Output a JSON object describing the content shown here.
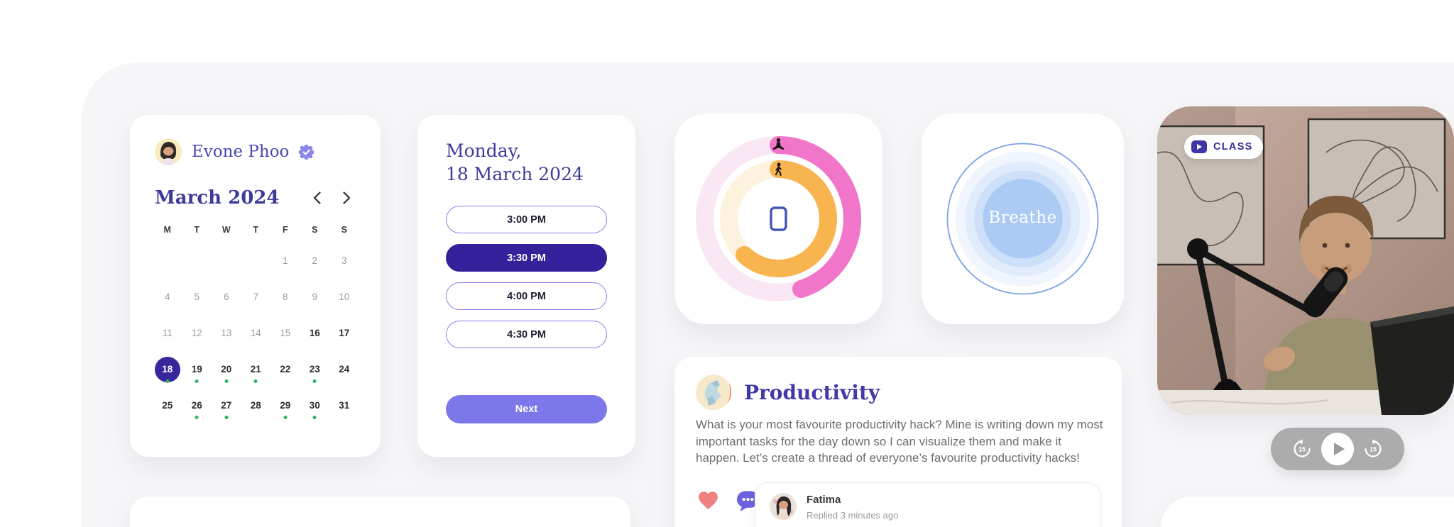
{
  "profile": {
    "name": "Evone Phoo",
    "verified": true
  },
  "calendar": {
    "month_title": "March 2024",
    "weekdays": [
      "M",
      "T",
      "W",
      "T",
      "F",
      "S",
      "S"
    ],
    "weeks": [
      [
        null,
        null,
        null,
        null,
        1,
        2,
        3
      ],
      [
        4,
        5,
        6,
        7,
        8,
        9,
        10
      ],
      [
        11,
        12,
        13,
        14,
        15,
        16,
        17
      ],
      [
        18,
        19,
        20,
        21,
        22,
        23,
        24
      ],
      [
        25,
        26,
        27,
        28,
        29,
        30,
        31
      ]
    ],
    "past_until": 15,
    "selected_day": 18,
    "dotted_days": [
      18,
      19,
      20,
      21,
      23,
      26,
      27,
      29,
      30
    ]
  },
  "schedule": {
    "title_line1": "Monday,",
    "title_line2": "18 March 2024",
    "slots": [
      "3:00 PM",
      "3:30 PM",
      "4:00 PM",
      "4:30 PM"
    ],
    "selected_slot": "3:30 PM",
    "next_label": "Next"
  },
  "activity": {
    "rings": [
      {
        "name": "meditation-ring",
        "progress": 0.45,
        "color": "#F175C9",
        "track": "#FAE7F4"
      },
      {
        "name": "steps-ring",
        "progress": 0.62,
        "color": "#F8B44F",
        "track": "#FCF2DE"
      }
    ]
  },
  "breathe": {
    "label": "Breathe"
  },
  "video": {
    "badge_label": "CLASS",
    "controls": [
      "rewind-15",
      "play",
      "forward-15"
    ],
    "skip_seconds": "15"
  },
  "productivity": {
    "title": "Productivity",
    "body": "What is your most favourite productivity hack? Mine is writing down my most important tasks for the day down so I can visualize them and make it happen. Let’s create a thread of everyone’s favourite productivity hacks!",
    "comment": {
      "author": "Fatima",
      "meta": "Replied 3 minutes ago"
    }
  },
  "colors": {
    "deep_purple": "#34219B",
    "accent_purple": "#7C78E9",
    "heading_purple": "#3E3A9C",
    "event_dot_green": "#2CB561",
    "heart_red": "#F0817E",
    "bubble_purple": "#6A62DF",
    "ring_pink": "#F175C9",
    "ring_orange": "#F8B44F",
    "breathe_blue": "#A8C9F3"
  }
}
